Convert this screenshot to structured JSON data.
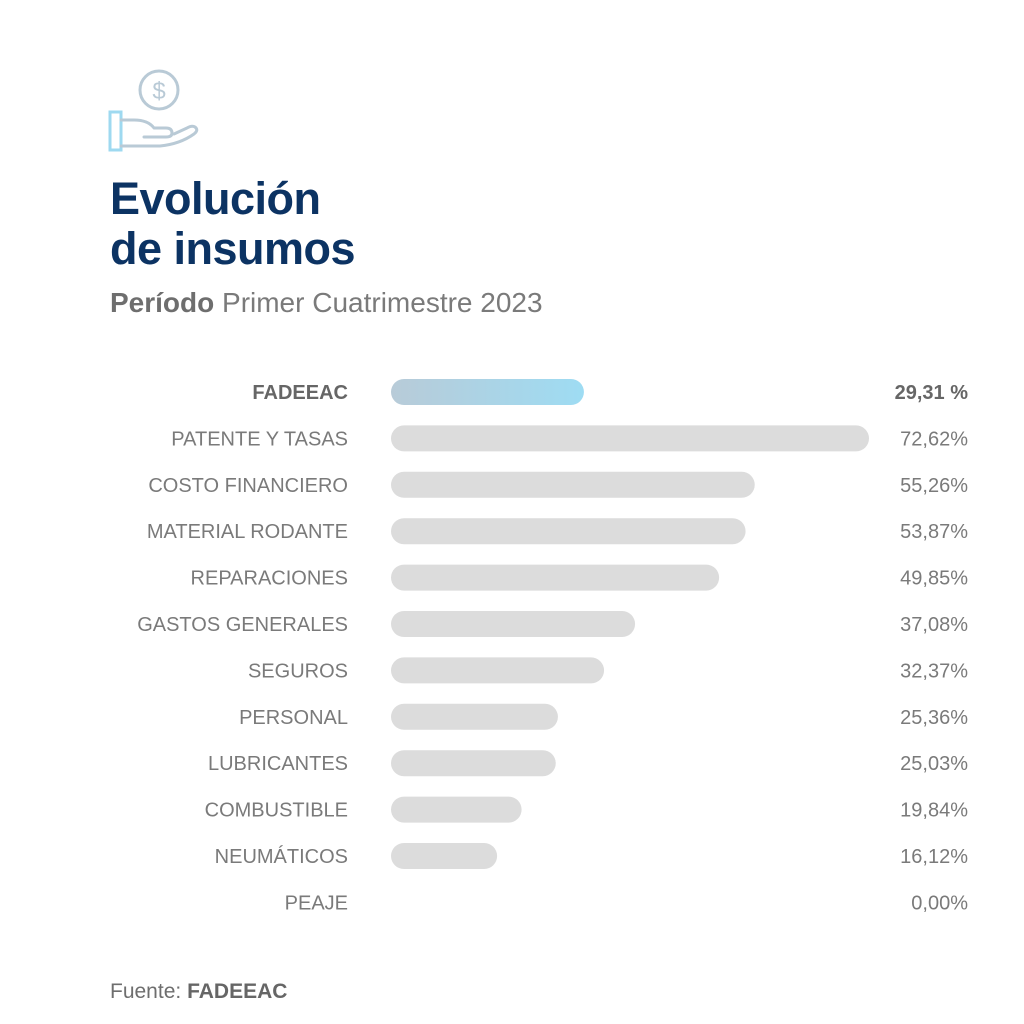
{
  "title_line1": "Evolución",
  "title_line2": "de insumos",
  "subtitle_bold": "Período",
  "subtitle_rest": "Primer Cuatrimestre 2023",
  "source_label": "Fuente:",
  "source_name": "FADEEAC",
  "icon": "hand-holding-coin-icon",
  "colors": {
    "title": "#0c3363",
    "highlight_start": "#b8cbd8",
    "highlight_end": "#9edcf3",
    "bar": "#dcdcdc",
    "label": "#7a7a7a",
    "label_highlight": "#666666"
  },
  "chart_data": {
    "type": "bar",
    "orientation": "horizontal",
    "xlim": [
      0,
      72.62
    ],
    "categories": [
      {
        "label": "FADEEAC",
        "value": 29.31,
        "value_label": "29,31 %",
        "highlight": true
      },
      {
        "label": "PATENTE Y TASAS",
        "value": 72.62,
        "value_label": "72,62%"
      },
      {
        "label": "COSTO FINANCIERO",
        "value": 55.26,
        "value_label": "55,26%"
      },
      {
        "label": "MATERIAL RODANTE",
        "value": 53.87,
        "value_label": "53,87%"
      },
      {
        "label": "REPARACIONES",
        "value": 49.85,
        "value_label": "49,85%"
      },
      {
        "label": "GASTOS GENERALES",
        "value": 37.08,
        "value_label": "37,08%"
      },
      {
        "label": "SEGUROS",
        "value": 32.37,
        "value_label": "32,37%"
      },
      {
        "label": "PERSONAL",
        "value": 25.36,
        "value_label": "25,36%"
      },
      {
        "label": "LUBRICANTES",
        "value": 25.03,
        "value_label": "25,03%"
      },
      {
        "label": "COMBUSTIBLE",
        "value": 19.84,
        "value_label": "19,84%"
      },
      {
        "label": "NEUMÁTICOS",
        "value": 16.12,
        "value_label": "16,12%"
      },
      {
        "label": "PEAJE",
        "value": 0.0,
        "value_label": "0,00%"
      }
    ]
  }
}
